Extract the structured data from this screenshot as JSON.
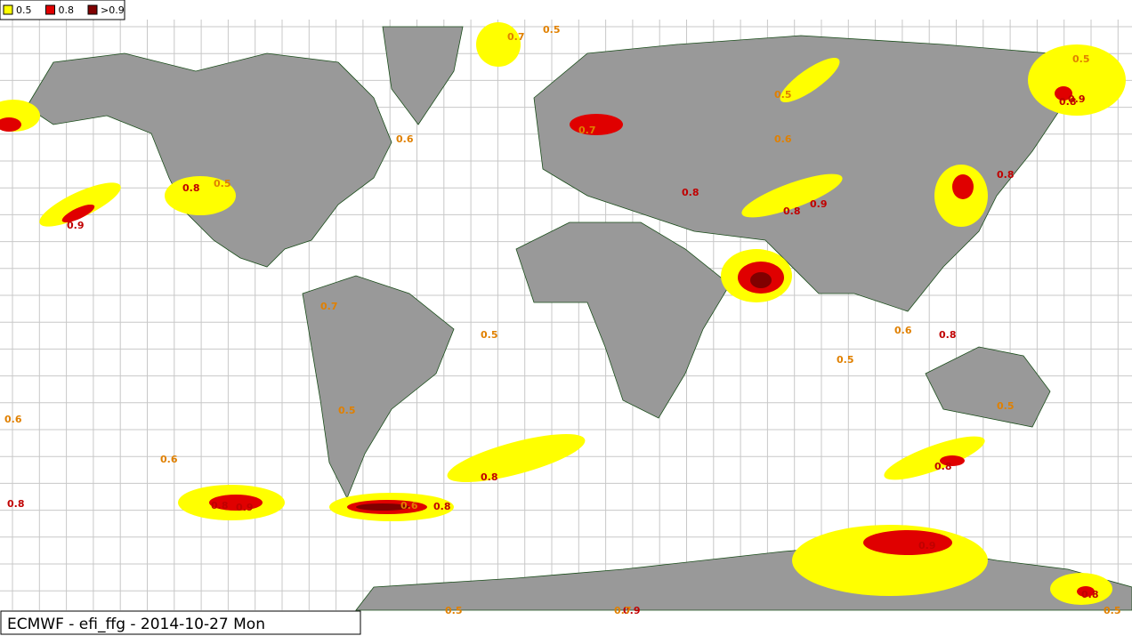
{
  "legend": [
    {
      "label": "0.5",
      "color": "#ffff00"
    },
    {
      "label": "0.8",
      "color": "#e00000"
    },
    {
      "label": ">0.9",
      "color": "#800000"
    }
  ],
  "title": "ECMWF - efi_ffg - 2014-10-27 Mon",
  "contour_labels": [
    "0.8",
    "0.6",
    "0.8",
    "0.9",
    "0.8",
    "0.8",
    "0.9",
    "0.8",
    "0.9",
    "0.8",
    "0.8",
    "0.7",
    "0.5",
    "0.6",
    "0.5",
    "0.8",
    "0.9",
    "0.8",
    "0.5",
    "0.6",
    "0.7",
    "0.5",
    "0.9",
    "0.6",
    "0.5",
    "0.5",
    "0.7",
    "0.8",
    "0.9",
    "0.5",
    "0.6",
    "0.5",
    "0.8",
    "0.6",
    "0.5",
    "0.5",
    "0.8",
    "0.7"
  ]
}
